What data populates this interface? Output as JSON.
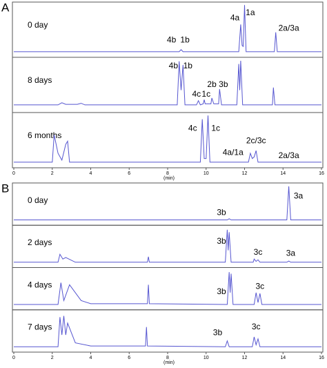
{
  "chart_data": [
    {
      "type": "line",
      "panel_label": "A",
      "x_label": "(min)",
      "xlim": [
        0,
        16
      ],
      "xticks": [
        0,
        2,
        4,
        6,
        8,
        10,
        12,
        14,
        16
      ],
      "ylim": [
        0,
        100
      ],
      "color": "#5555d0",
      "traces": [
        {
          "name": "0 day",
          "x": [
            0,
            8.6,
            8.7,
            8.8,
            11.7,
            11.8,
            11.87,
            11.93,
            12.0,
            12.08,
            13.55,
            13.62,
            13.7,
            16
          ],
          "values": [
            8,
            8,
            12,
            8,
            8,
            60,
            20,
            18,
            97,
            8,
            8,
            45,
            8,
            8
          ],
          "peak_labels": [
            {
              "label": "4b",
              "x": 8.2,
              "y": 30
            },
            {
              "label": "1b",
              "x": 8.9,
              "y": 30
            },
            {
              "label": "4a",
              "x": 11.5,
              "y": 72
            },
            {
              "label": "1a",
              "x": 12.3,
              "y": 82
            },
            {
              "label": "2a/3a",
              "x": 14.3,
              "y": 52
            }
          ]
        },
        {
          "name": "8 days",
          "x": [
            0,
            2.3,
            2.5,
            2.7,
            3.3,
            3.5,
            3.7,
            8.5,
            8.6,
            8.7,
            8.8,
            8.9,
            9.5,
            9.6,
            9.7,
            9.85,
            9.9,
            9.95,
            10.25,
            10.3,
            10.4,
            10.65,
            10.7,
            10.8,
            11.6,
            11.7,
            11.75,
            11.8,
            11.9,
            13.45,
            13.5,
            13.58,
            16
          ],
          "values": [
            12,
            12,
            16,
            13,
            13,
            15,
            12,
            12,
            95,
            40,
            88,
            12,
            12,
            20,
            12,
            14,
            22,
            14,
            14,
            25,
            14,
            14,
            42,
            12,
            12,
            90,
            40,
            96,
            12,
            12,
            45,
            12,
            12
          ],
          "peak_labels": [
            {
              "label": "4b",
              "x": 8.3,
              "y": 86
            },
            {
              "label": "1b",
              "x": 9.05,
              "y": 86
            },
            {
              "label": "4c",
              "x": 9.5,
              "y": 32
            },
            {
              "label": "1c",
              "x": 10.0,
              "y": 32
            },
            {
              "label": "2b",
              "x": 10.3,
              "y": 50
            },
            {
              "label": "3b",
              "x": 10.9,
              "y": 50
            }
          ]
        },
        {
          "name": "6 months",
          "x": [
            0,
            2.0,
            2.1,
            2.3,
            2.5,
            2.7,
            2.8,
            2.9,
            9.7,
            9.8,
            9.9,
            10.0,
            10.1,
            10.2,
            12.2,
            12.3,
            12.4,
            12.5,
            12.6,
            12.7,
            16
          ],
          "values": [
            8,
            8,
            60,
            25,
            12,
            42,
            48,
            8,
            8,
            90,
            15,
            15,
            97,
            8,
            8,
            25,
            15,
            18,
            30,
            8,
            8
          ],
          "peak_labels": [
            {
              "label": "4c",
              "x": 9.3,
              "y": 72
            },
            {
              "label": "1c",
              "x": 10.5,
              "y": 72
            },
            {
              "label": "4a/1a",
              "x": 11.4,
              "y": 26
            },
            {
              "label": "2c/3c",
              "x": 12.6,
              "y": 48
            },
            {
              "label": "2a/3a",
              "x": 14.3,
              "y": 20
            }
          ]
        }
      ]
    },
    {
      "type": "line",
      "panel_label": "B",
      "x_label": "(min)",
      "xlim": [
        0,
        16
      ],
      "xticks": [
        0,
        2,
        4,
        6,
        8,
        10,
        12,
        14,
        16
      ],
      "ylim": [
        0,
        100
      ],
      "color": "#5555d0",
      "traces": [
        {
          "name": "0 day",
          "x": [
            0,
            11.1,
            11.2,
            11.3,
            14.2,
            14.3,
            14.4,
            16
          ],
          "values": [
            10,
            10,
            13,
            10,
            10,
            95,
            10,
            10
          ],
          "peak_labels": [
            {
              "label": "3b",
              "x": 10.8,
              "y": 28
            },
            {
              "label": "3a",
              "x": 14.8,
              "y": 70
            }
          ]
        },
        {
          "name": "2 days",
          "x": [
            0,
            2.3,
            2.4,
            2.55,
            2.7,
            3.2,
            6.95,
            7.0,
            7.05,
            11.0,
            11.1,
            11.15,
            11.2,
            11.3,
            12.45,
            12.5,
            12.6,
            12.7,
            12.8,
            14.2,
            14.3,
            14.4,
            16
          ],
          "values": [
            10,
            10,
            30,
            18,
            22,
            10,
            10,
            24,
            10,
            10,
            92,
            40,
            86,
            10,
            10,
            18,
            12,
            16,
            10,
            10,
            13,
            10,
            10
          ],
          "peak_labels": [
            {
              "label": "3b",
              "x": 10.8,
              "y": 62
            },
            {
              "label": "3c",
              "x": 12.7,
              "y": 34
            },
            {
              "label": "3a",
              "x": 14.4,
              "y": 32
            }
          ]
        },
        {
          "name": "4 days",
          "x": [
            0,
            2.3,
            2.45,
            2.6,
            2.9,
            3.5,
            4.0,
            6.95,
            7.0,
            7.05,
            11.1,
            11.2,
            11.25,
            11.3,
            11.4,
            12.5,
            12.6,
            12.7,
            12.8,
            12.9,
            16
          ],
          "values": [
            10,
            10,
            65,
            20,
            60,
            20,
            12,
            12,
            60,
            12,
            10,
            92,
            40,
            88,
            10,
            10,
            40,
            15,
            38,
            10,
            10
          ],
          "peak_labels": [
            {
              "label": "3b",
              "x": 10.8,
              "y": 42
            },
            {
              "label": "3c",
              "x": 12.8,
              "y": 55
            }
          ]
        },
        {
          "name": "7 days",
          "x": [
            0,
            2.3,
            2.4,
            2.5,
            2.6,
            2.7,
            2.8,
            3.2,
            4.0,
            6.85,
            6.9,
            6.95,
            11.0,
            11.1,
            11.2,
            12.4,
            12.5,
            12.6,
            12.7,
            12.8,
            16
          ],
          "values": [
            10,
            10,
            85,
            40,
            88,
            40,
            70,
            20,
            12,
            12,
            60,
            12,
            10,
            25,
            10,
            10,
            35,
            15,
            30,
            10,
            10
          ],
          "peak_labels": [
            {
              "label": "3b",
              "x": 10.6,
              "y": 45
            },
            {
              "label": "3c",
              "x": 12.6,
              "y": 60
            }
          ]
        }
      ]
    }
  ]
}
